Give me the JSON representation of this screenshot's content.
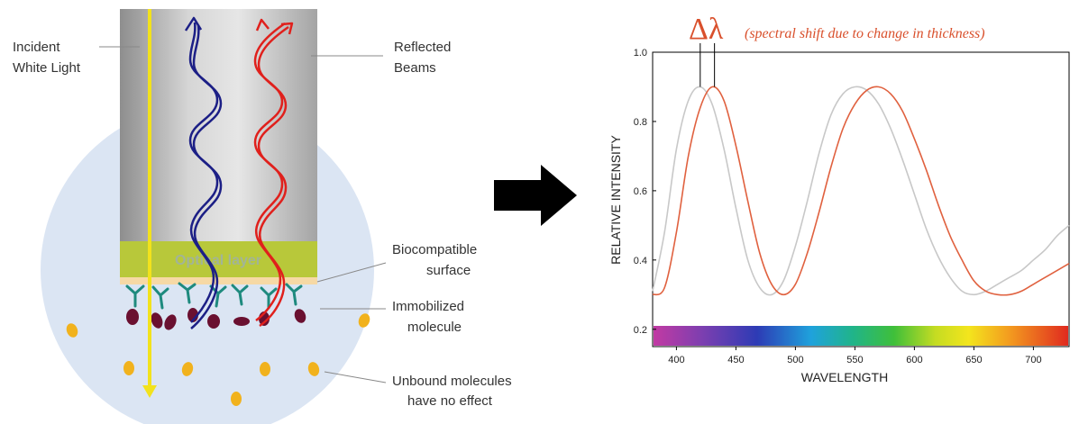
{
  "diagram": {
    "labels": {
      "incident_line1": "Incident",
      "incident_line2": "White Light",
      "reflected_line1": "Reflected",
      "reflected_line2": "Beams",
      "biocompatible_line1": "Biocompatible",
      "biocompatible_line2": "surface",
      "immobilized_line1": "Immobilized",
      "immobilized_line2": "molecule",
      "unbound_line1": "Unbound molecules",
      "unbound_line2": "have no effect",
      "optical_layer": "Optical layer"
    },
    "colors": {
      "incident_beam": "#f2e21c",
      "reflected_blue": "#1c1f86",
      "reflected_red": "#e0201c",
      "optical_layer": "#b8c83a",
      "antibody": "#1e8a7e",
      "bound_molecule": "#6a1030",
      "unbound_molecule": "#f1b21d",
      "circle": "#dbe5f3"
    }
  },
  "arrow": {
    "icon": "right-arrow-icon"
  },
  "chart_data": {
    "type": "line",
    "xlabel": "WAVELENGTH",
    "ylabel": "RELATIVE INTENSITY",
    "xlim": [
      380,
      730
    ],
    "ylim": [
      0.15,
      1.0
    ],
    "xticks": [
      400,
      450,
      500,
      550,
      600,
      650,
      700
    ],
    "yticks": [
      0.2,
      0.4,
      0.6,
      0.8,
      1.0
    ],
    "ytick_labels": [
      "0.2",
      "0.4",
      "0.6",
      "0.8",
      "1.0"
    ],
    "series": [
      {
        "color": "#c8c8c8",
        "x": [
          380,
          390,
          400,
          410,
          420,
          430,
          440,
          450,
          460,
          470,
          480,
          490,
          500,
          510,
          520,
          530,
          540,
          550,
          560,
          570,
          580,
          590,
          600,
          610,
          620,
          630,
          640,
          650,
          660,
          670,
          680,
          690,
          700,
          710,
          720,
          730
        ],
        "y": [
          0.31,
          0.48,
          0.72,
          0.86,
          0.9,
          0.85,
          0.72,
          0.55,
          0.4,
          0.32,
          0.3,
          0.34,
          0.44,
          0.57,
          0.71,
          0.82,
          0.88,
          0.9,
          0.89,
          0.85,
          0.78,
          0.69,
          0.59,
          0.49,
          0.41,
          0.35,
          0.31,
          0.3,
          0.31,
          0.33,
          0.35,
          0.37,
          0.4,
          0.43,
          0.47,
          0.5
        ]
      },
      {
        "color": "#e0613f",
        "x": [
          380,
          390,
          400,
          410,
          420,
          430,
          440,
          450,
          460,
          470,
          480,
          490,
          500,
          510,
          520,
          530,
          540,
          550,
          560,
          570,
          580,
          590,
          600,
          610,
          620,
          630,
          640,
          650,
          660,
          670,
          680,
          690,
          700,
          710,
          720,
          730
        ],
        "y": [
          0.3,
          0.32,
          0.48,
          0.7,
          0.84,
          0.9,
          0.86,
          0.73,
          0.57,
          0.42,
          0.33,
          0.3,
          0.33,
          0.42,
          0.54,
          0.67,
          0.78,
          0.85,
          0.89,
          0.9,
          0.88,
          0.83,
          0.75,
          0.66,
          0.56,
          0.47,
          0.4,
          0.34,
          0.31,
          0.3,
          0.3,
          0.31,
          0.33,
          0.35,
          0.37,
          0.39
        ]
      }
    ],
    "annotation": {
      "delta_symbol": "Δλ",
      "text": "(spectral shift due to change in thickness)",
      "color": "#d9502c",
      "peak_x": [
        420,
        432
      ]
    },
    "spectrum_bar": true
  }
}
